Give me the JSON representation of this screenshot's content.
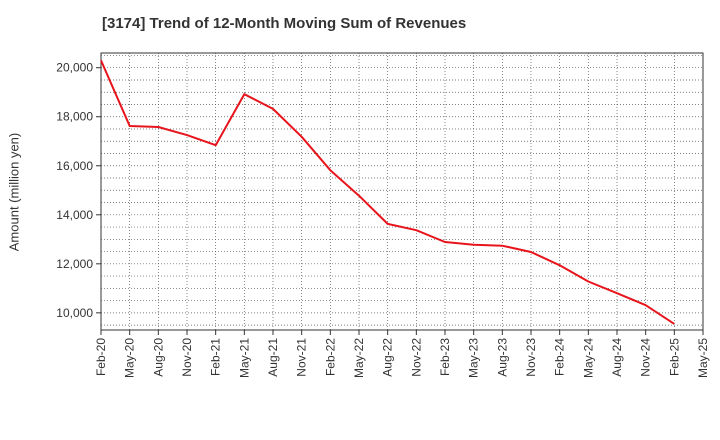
{
  "chart_data": {
    "type": "line",
    "title": "[3174]  Trend of 12-Month Moving Sum of Revenues",
    "ylabel": "Amount (million yen)",
    "xlabel": "",
    "ylim": [
      9300,
      20600
    ],
    "yticks": [
      "10,000",
      "12,000",
      "14,000",
      "16,000",
      "18,000",
      "20,000"
    ],
    "ytick_values": [
      10000,
      12000,
      14000,
      16000,
      18000,
      20000
    ],
    "xticks": [
      "Feb-20",
      "May-20",
      "Aug-20",
      "Nov-20",
      "Feb-21",
      "May-21",
      "Aug-21",
      "Nov-21",
      "Feb-22",
      "May-22",
      "Aug-22",
      "Nov-22",
      "Feb-23",
      "May-23",
      "Aug-23",
      "Nov-23",
      "Feb-24",
      "May-24",
      "Aug-24",
      "Nov-24",
      "Feb-25",
      "May-25"
    ],
    "grid": true,
    "series": [
      {
        "color": "#e8141c",
        "x": [
          "Feb-20",
          "May-20",
          "Aug-20",
          "Nov-20",
          "Feb-21",
          "May-21",
          "Aug-21",
          "Nov-21",
          "Feb-22",
          "May-22",
          "Aug-22",
          "Nov-22",
          "Feb-23",
          "May-23",
          "Aug-23",
          "Nov-23",
          "Feb-24",
          "May-24",
          "Aug-24",
          "Nov-24",
          "Feb-25"
        ],
        "values": [
          20300,
          17620,
          17580,
          17250,
          16840,
          18920,
          18320,
          17180,
          15820,
          14780,
          13630,
          13370,
          12890,
          12780,
          12740,
          12480,
          11940,
          11280,
          10800,
          10310,
          9550
        ]
      }
    ]
  }
}
